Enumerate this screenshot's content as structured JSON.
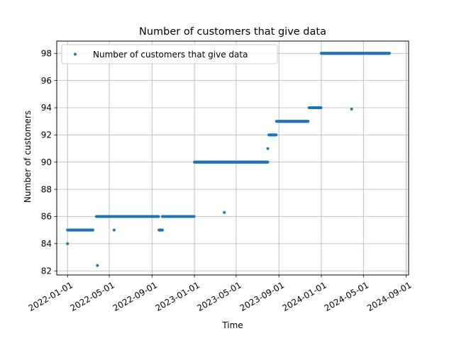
{
  "chart_data": {
    "type": "scatter",
    "title": "Number of customers that give data",
    "xlabel": "Time",
    "ylabel": "Number of customers",
    "x_type": "date",
    "xlim": [
      "2021-12-01",
      "2024-09-08"
    ],
    "ylim": [
      81.7,
      98.9
    ],
    "x_ticks": [
      "2022-01-01",
      "2022-05-01",
      "2022-09-01",
      "2023-01-01",
      "2023-05-01",
      "2023-09-01",
      "2024-01-01",
      "2024-05-01",
      "2024-09-01"
    ],
    "y_ticks": [
      82,
      84,
      86,
      88,
      90,
      92,
      94,
      96,
      98
    ],
    "grid": true,
    "legend_position": "top-left",
    "marker_color": "#1f77b4",
    "series": [
      {
        "name": "Number of customers that give data",
        "segments": [
          {
            "start": "2022-01-01",
            "end": "2022-03-15",
            "y": 85
          },
          {
            "start": "2022-03-25",
            "end": "2022-09-20",
            "y": 86
          },
          {
            "start": "2022-09-21",
            "end": "2022-10-01",
            "y": 85
          },
          {
            "start": "2022-10-01",
            "end": "2022-12-31",
            "y": 86
          },
          {
            "start": "2023-01-01",
            "end": "2023-07-31",
            "y": 90
          },
          {
            "start": "2023-08-03",
            "end": "2023-08-24",
            "y": 92
          },
          {
            "start": "2023-08-25",
            "end": "2023-11-24",
            "y": 93
          },
          {
            "start": "2023-11-27",
            "end": "2023-12-31",
            "y": 94
          },
          {
            "start": "2024-01-01",
            "end": "2024-07-15",
            "y": 98
          }
        ],
        "points": [
          {
            "x": "2022-01-01",
            "y": 84
          },
          {
            "x": "2022-03-28",
            "y": 82.4
          },
          {
            "x": "2022-05-15",
            "y": 85
          },
          {
            "x": "2023-03-28",
            "y": 86.3
          },
          {
            "x": "2023-07-31",
            "y": 91
          },
          {
            "x": "2024-03-28",
            "y": 93.9
          }
        ]
      }
    ]
  }
}
